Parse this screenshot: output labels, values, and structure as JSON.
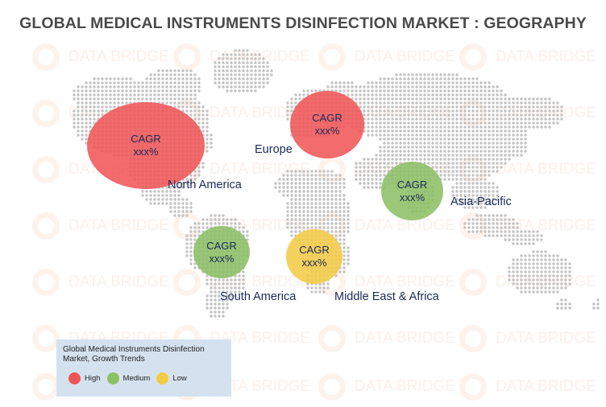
{
  "title": "GLOBAL MEDICAL INSTRUMENTS DISINFECTION MARKET : GEOGRAPHY",
  "watermark": "DATA BRIDGE",
  "colors": {
    "high": "#f05456",
    "medium": "#8cc063",
    "low": "#f3ca45",
    "map_dots": "#c3c3c3",
    "text": "#1b2a5a"
  },
  "regions": [
    {
      "key": "north-america",
      "label": "North America",
      "cagr_label": "CAGR",
      "cagr_value": "xxx%",
      "level": "high"
    },
    {
      "key": "europe",
      "label": "Europe",
      "cagr_label": "CAGR",
      "cagr_value": "xxx%",
      "level": "high"
    },
    {
      "key": "asia-pacific",
      "label": "Asia-Pacific",
      "cagr_label": "CAGR",
      "cagr_value": "xxx%",
      "level": "medium"
    },
    {
      "key": "south-america",
      "label": "South America",
      "cagr_label": "CAGR",
      "cagr_value": "xxx%",
      "level": "medium"
    },
    {
      "key": "middle-east-africa",
      "label": "Middle East & Africa",
      "cagr_label": "CAGR",
      "cagr_value": "xxx%",
      "level": "low"
    }
  ],
  "legend": {
    "title": "Global Medical Instruments Disinfection Market, Growth Trends",
    "items": [
      {
        "label": "High",
        "level": "high"
      },
      {
        "label": "Medium",
        "level": "medium"
      },
      {
        "label": "Low",
        "level": "low"
      }
    ]
  }
}
